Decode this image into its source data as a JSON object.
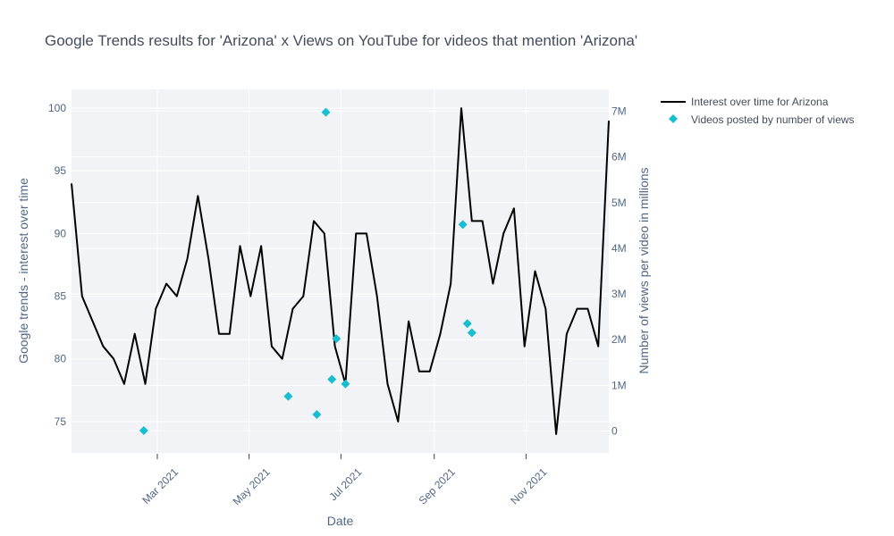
{
  "chart_data": {
    "type": "line",
    "title": "Google Trends results for 'Arizona' x Views on YouTube for videos that mention 'Arizona'",
    "xlabel": "Date",
    "ylabel": "Google trends - interest over time",
    "y2label": "Number of views per video in millions",
    "x_ticks": [
      {
        "date": "2021-03-01",
        "label": "Mar 2021"
      },
      {
        "date": "2021-05-01",
        "label": "May 2021"
      },
      {
        "date": "2021-07-01",
        "label": "Jul 2021"
      },
      {
        "date": "2021-09-01",
        "label": "Sep 2021"
      },
      {
        "date": "2021-11-01",
        "label": "Nov 2021"
      }
    ],
    "xlim": [
      "2021-01-03",
      "2021-12-26"
    ],
    "ylim": [
      72.5,
      101.5
    ],
    "y_ticks": [
      75,
      80,
      85,
      90,
      95,
      100
    ],
    "y2lim": [
      -0.48,
      7.48
    ],
    "y2_ticks": [
      {
        "value": 0,
        "label": "0"
      },
      {
        "value": 1,
        "label": "1M"
      },
      {
        "value": 2,
        "label": "2M"
      },
      {
        "value": 3,
        "label": "3M"
      },
      {
        "value": 4,
        "label": "4M"
      },
      {
        "value": 5,
        "label": "5M"
      },
      {
        "value": 6,
        "label": "6M"
      },
      {
        "value": 7,
        "label": "7M"
      }
    ],
    "grid": true,
    "legend_position": "top-right",
    "series": [
      {
        "name": "Interest over time for Arizona",
        "type": "line",
        "color": "#000000",
        "axis": "y",
        "points": [
          [
            "2021-01-03",
            94
          ],
          [
            "2021-01-10",
            85
          ],
          [
            "2021-01-17",
            83
          ],
          [
            "2021-01-24",
            81
          ],
          [
            "2021-01-31",
            80
          ],
          [
            "2021-02-07",
            78
          ],
          [
            "2021-02-14",
            82
          ],
          [
            "2021-02-21",
            78
          ],
          [
            "2021-02-28",
            84
          ],
          [
            "2021-03-07",
            86
          ],
          [
            "2021-03-14",
            85
          ],
          [
            "2021-03-21",
            88
          ],
          [
            "2021-03-28",
            93
          ],
          [
            "2021-04-04",
            88
          ],
          [
            "2021-04-11",
            82
          ],
          [
            "2021-04-18",
            82
          ],
          [
            "2021-04-25",
            89
          ],
          [
            "2021-05-02",
            85
          ],
          [
            "2021-05-09",
            89
          ],
          [
            "2021-05-16",
            81
          ],
          [
            "2021-05-23",
            80
          ],
          [
            "2021-05-30",
            84
          ],
          [
            "2021-06-06",
            85
          ],
          [
            "2021-06-13",
            91
          ],
          [
            "2021-06-20",
            90
          ],
          [
            "2021-06-27",
            81
          ],
          [
            "2021-07-04",
            78
          ],
          [
            "2021-07-11",
            90
          ],
          [
            "2021-07-18",
            90
          ],
          [
            "2021-07-25",
            85
          ],
          [
            "2021-08-01",
            78
          ],
          [
            "2021-08-08",
            75
          ],
          [
            "2021-08-15",
            83
          ],
          [
            "2021-08-22",
            79
          ],
          [
            "2021-08-29",
            79
          ],
          [
            "2021-09-05",
            82
          ],
          [
            "2021-09-12",
            86
          ],
          [
            "2021-09-19",
            100
          ],
          [
            "2021-09-26",
            91
          ],
          [
            "2021-10-03",
            91
          ],
          [
            "2021-10-10",
            86
          ],
          [
            "2021-10-17",
            90
          ],
          [
            "2021-10-24",
            92
          ],
          [
            "2021-10-31",
            81
          ],
          [
            "2021-11-07",
            87
          ],
          [
            "2021-11-14",
            84
          ],
          [
            "2021-11-21",
            74
          ],
          [
            "2021-11-28",
            82
          ],
          [
            "2021-12-05",
            84
          ],
          [
            "2021-12-12",
            84
          ],
          [
            "2021-12-19",
            81
          ],
          [
            "2021-12-26",
            99
          ]
        ]
      },
      {
        "name": "Videos posted by number of views",
        "type": "scatter",
        "marker": "diamond",
        "color": "#17becf",
        "axis": "y2",
        "points": [
          [
            "2021-02-20",
            0.01
          ],
          [
            "2021-05-27",
            0.76
          ],
          [
            "2021-06-15",
            0.36
          ],
          [
            "2021-06-21",
            6.98
          ],
          [
            "2021-06-25",
            1.13
          ],
          [
            "2021-06-28",
            2.02
          ],
          [
            "2021-07-04",
            1.03
          ],
          [
            "2021-09-20",
            4.52
          ],
          [
            "2021-09-23",
            2.35
          ],
          [
            "2021-09-26",
            2.15
          ]
        ]
      }
    ]
  }
}
